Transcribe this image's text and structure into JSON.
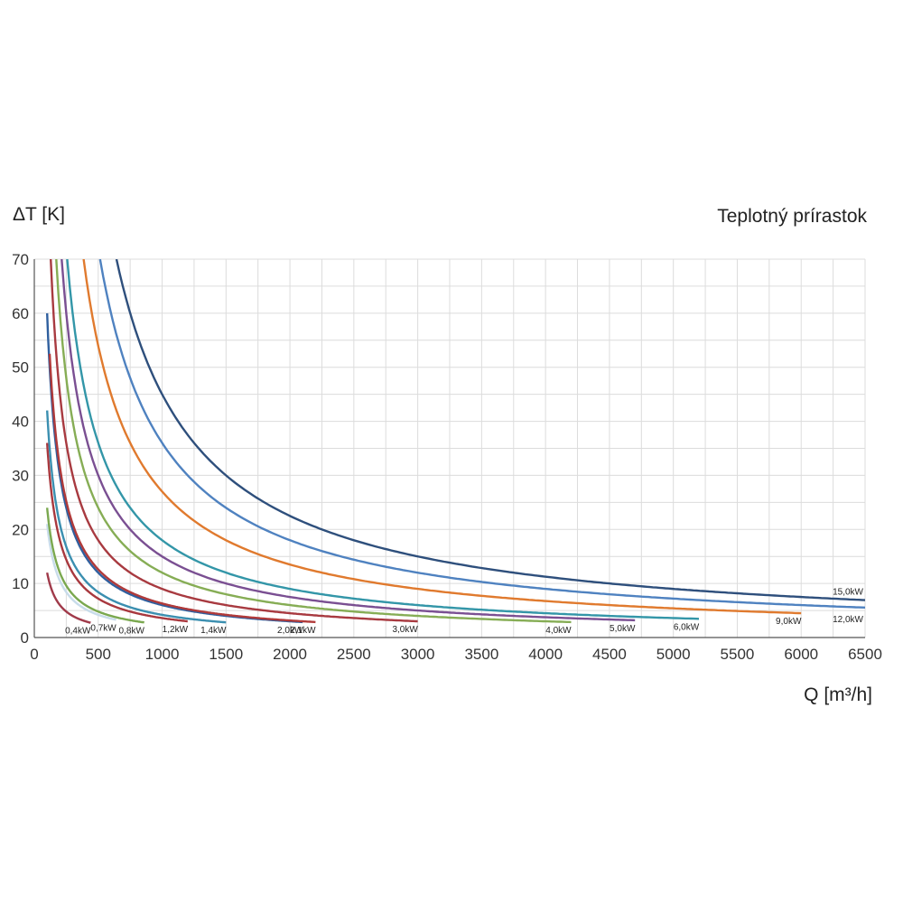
{
  "chart_data": {
    "type": "line",
    "title": "Teplotný prírastok",
    "ylabel": "ΔT [K]",
    "xlabel": "Q [m³/h]",
    "xlim": [
      0,
      6500
    ],
    "ylim": [
      0,
      70
    ],
    "x_ticks": [
      0,
      500,
      1000,
      1500,
      2000,
      2500,
      3000,
      3500,
      4000,
      4500,
      5000,
      5500,
      6000,
      6500
    ],
    "y_ticks": [
      0,
      10,
      20,
      30,
      40,
      50,
      60,
      70
    ],
    "x_minor_step": 250,
    "y_minor_step": 5,
    "grid": true,
    "series": [
      {
        "name": "0,4kW",
        "power_kw": 0.4,
        "q_min": 100,
        "q_max": 440,
        "color": "#a03a4a"
      },
      {
        "name": "0,7kW",
        "power_kw": 0.7,
        "q_min": 100,
        "q_max": 640,
        "color": "#c8dcea"
      },
      {
        "name": "0,8kW",
        "power_kw": 0.8,
        "q_min": 100,
        "q_max": 860,
        "color": "#7aa84f"
      },
      {
        "name": "1,2kW",
        "power_kw": 1.2,
        "q_min": 100,
        "q_max": 1200,
        "color": "#a8383e"
      },
      {
        "name": "1,4kW",
        "power_kw": 1.4,
        "q_min": 100,
        "q_max": 1500,
        "color": "#3b8fb0"
      },
      {
        "name": "2,0kW",
        "power_kw": 2.0,
        "q_min": 100,
        "q_max": 2100,
        "color": "#2f5f9e"
      },
      {
        "name": "2,1kW",
        "power_kw": 2.1,
        "q_min": 120,
        "q_max": 2200,
        "color": "#b03a3a"
      },
      {
        "name": "3,0kW",
        "power_kw": 3.0,
        "q_min": 125,
        "q_max": 3000,
        "color": "#a83a40"
      },
      {
        "name": "4,0kW",
        "power_kw": 4.0,
        "q_min": 160,
        "q_max": 4200,
        "color": "#86ad55"
      },
      {
        "name": "5,0kW",
        "power_kw": 5.0,
        "q_min": 200,
        "q_max": 4700,
        "color": "#7a4f92"
      },
      {
        "name": "6,0kW",
        "power_kw": 6.0,
        "q_min": 250,
        "q_max": 5200,
        "color": "#3396a8"
      },
      {
        "name": "9,0kW",
        "power_kw": 9.0,
        "q_min": 360,
        "q_max": 6000,
        "color": "#e07a2e"
      },
      {
        "name": "12,0kW",
        "power_kw": 12.0,
        "q_min": 480,
        "q_max": 6500,
        "color": "#4f82c0"
      },
      {
        "name": "15,0kW",
        "power_kw": 15.0,
        "q_min": 600,
        "q_max": 6500,
        "color": "#2e4f7c"
      }
    ]
  }
}
